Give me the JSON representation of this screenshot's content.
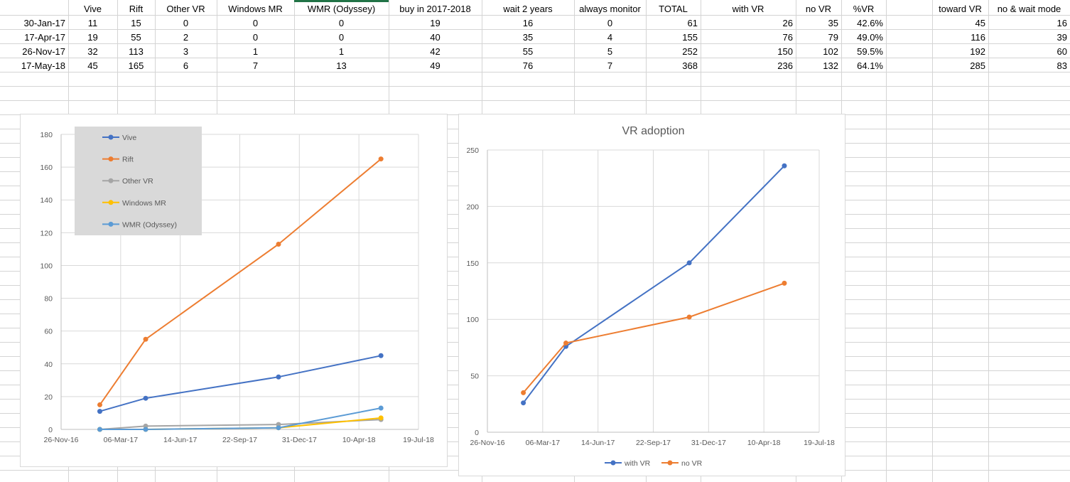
{
  "sheet": {
    "header_row": [
      "",
      "Vive",
      "Rift",
      "Other VR",
      "Windows MR",
      "WMR (Odyssey)",
      "buy in 2017-2018",
      "wait 2 years",
      "always monitor",
      "TOTAL",
      "with VR",
      "no VR",
      "%VR",
      "",
      "toward VR",
      "no & wait mode"
    ],
    "rows": [
      [
        "30-Jan-17",
        "11",
        "15",
        "0",
        "0",
        "0",
        "19",
        "16",
        "0",
        "61",
        "26",
        "35",
        "42.6%",
        "",
        "45",
        "16"
      ],
      [
        "17-Apr-17",
        "19",
        "55",
        "2",
        "0",
        "0",
        "40",
        "35",
        "4",
        "155",
        "76",
        "79",
        "49.0%",
        "",
        "116",
        "39"
      ],
      [
        "26-Nov-17",
        "32",
        "113",
        "3",
        "1",
        "1",
        "42",
        "55",
        "5",
        "252",
        "150",
        "102",
        "59.5%",
        "",
        "192",
        "60"
      ],
      [
        "17-May-18",
        "45",
        "165",
        "6",
        "7",
        "13",
        "49",
        "76",
        "7",
        "368",
        "236",
        "132",
        "64.1%",
        "",
        "285",
        "83"
      ]
    ]
  },
  "chart_data": [
    {
      "type": "scatter",
      "title": "",
      "x": [
        "2017-01-30",
        "2017-04-17",
        "2017-11-26",
        "2018-05-17"
      ],
      "x_tick_labels": [
        "26-Nov-16",
        "06-Mar-17",
        "14-Jun-17",
        "22-Sep-17",
        "31-Dec-17",
        "10-Apr-18",
        "19-Jul-18"
      ],
      "x_ticks": [
        "2016-11-26",
        "2017-03-06",
        "2017-06-14",
        "2017-09-22",
        "2017-12-31",
        "2018-04-10",
        "2018-07-19"
      ],
      "y_ticks": [
        0,
        20,
        40,
        60,
        80,
        100,
        120,
        140,
        160,
        180
      ],
      "ylim": [
        0,
        180
      ],
      "legend_position": "top-left",
      "series": [
        {
          "name": "Vive",
          "color": "#4472C4",
          "values": [
            11,
            19,
            32,
            45
          ]
        },
        {
          "name": "Rift",
          "color": "#ED7D31",
          "values": [
            15,
            55,
            113,
            165
          ]
        },
        {
          "name": "Other VR",
          "color": "#A5A5A5",
          "values": [
            0,
            2,
            3,
            6
          ]
        },
        {
          "name": "Windows MR",
          "color": "#FFC000",
          "values": [
            0,
            0,
            1,
            7
          ]
        },
        {
          "name": "WMR (Odyssey)",
          "color": "#5B9BD5",
          "values": [
            0,
            0,
            1,
            13
          ]
        }
      ]
    },
    {
      "type": "scatter",
      "title": "VR adoption",
      "x": [
        "2017-01-30",
        "2017-04-17",
        "2017-11-26",
        "2018-05-17"
      ],
      "x_tick_labels": [
        "26-Nov-16",
        "06-Mar-17",
        "14-Jun-17",
        "22-Sep-17",
        "31-Dec-17",
        "10-Apr-18",
        "19-Jul-18"
      ],
      "x_ticks": [
        "2016-11-26",
        "2017-03-06",
        "2017-06-14",
        "2017-09-22",
        "2017-12-31",
        "2018-04-10",
        "2018-07-19"
      ],
      "y_ticks": [
        0,
        50,
        100,
        150,
        200,
        250
      ],
      "ylim": [
        0,
        250
      ],
      "legend_position": "bottom",
      "series": [
        {
          "name": "with VR",
          "color": "#4472C4",
          "values": [
            26,
            76,
            150,
            236
          ]
        },
        {
          "name": "no VR",
          "color": "#ED7D31",
          "values": [
            35,
            79,
            102,
            132
          ]
        }
      ]
    }
  ]
}
